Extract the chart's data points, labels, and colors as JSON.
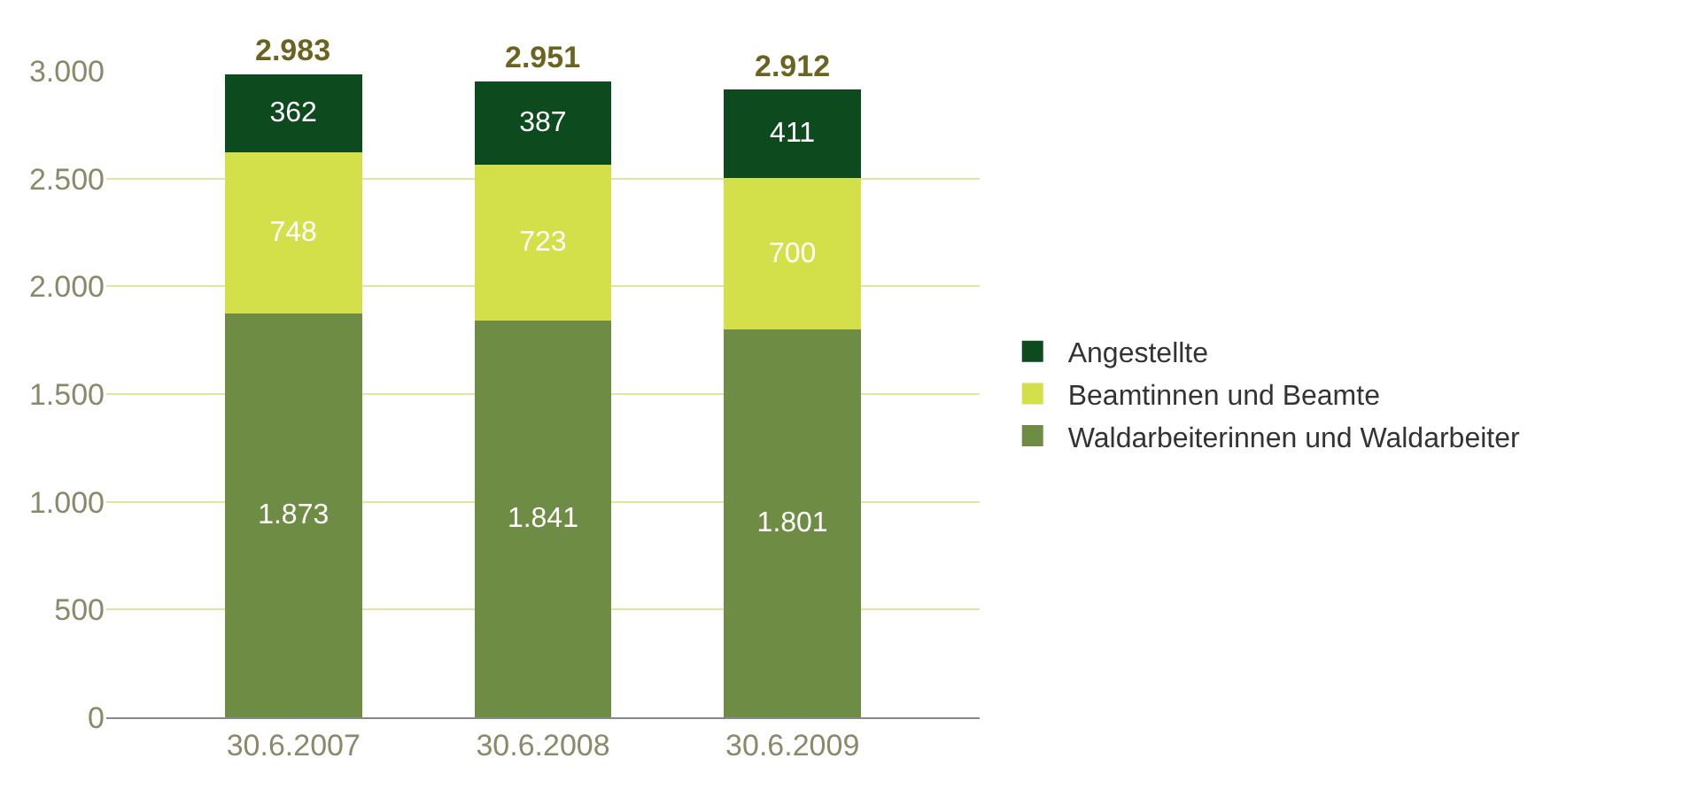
{
  "chart_data": {
    "type": "bar",
    "stacked": true,
    "categories": [
      "30.6.2007",
      "30.6.2008",
      "30.6.2009"
    ],
    "series": [
      {
        "name": "Waldarbeiterinnen und Waldarbeiter",
        "color": "#6f8c45",
        "values": [
          1873,
          1841,
          1801
        ],
        "value_labels": [
          "1.873",
          "1.841",
          "1.801"
        ]
      },
      {
        "name": "Beamtinnen und Beamte",
        "color": "#d4e04a",
        "values": [
          748,
          723,
          700
        ],
        "value_labels": [
          "748",
          "723",
          "700"
        ]
      },
      {
        "name": "Angestellte",
        "color": "#0d4a1e",
        "values": [
          362,
          387,
          411
        ],
        "value_labels": [
          "362",
          "387",
          "411"
        ]
      }
    ],
    "totals": [
      "2.983",
      "2.951",
      "2.912"
    ],
    "ylim": [
      0,
      3000
    ],
    "yticks": [
      0,
      500,
      {
        "value": 1000,
        "label": "1.000"
      },
      {
        "value": 1500,
        "label": "1.500"
      },
      {
        "value": 2000,
        "label": "2.000"
      },
      {
        "value": 2500,
        "label": "2.500"
      },
      {
        "value": 3000,
        "label": "3.000"
      }
    ],
    "grid": "y",
    "legend": "right"
  }
}
